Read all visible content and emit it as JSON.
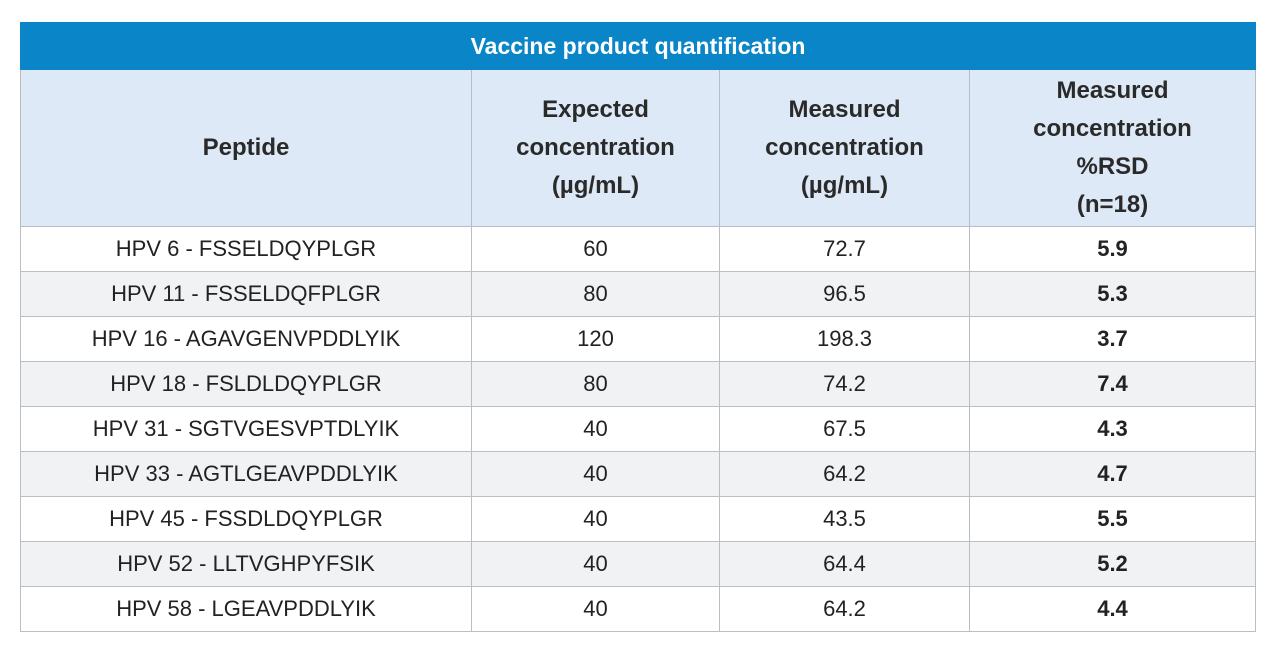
{
  "table": {
    "title": "Vaccine product quantification",
    "headers": {
      "peptide": [
        "Peptide"
      ],
      "expected": [
        "Expected",
        "concentration",
        "(µg/mL)"
      ],
      "measured": [
        "Measured",
        "concentration",
        "(µg/mL)"
      ],
      "rsd": [
        "Measured",
        "concentration",
        "%RSD",
        "(n=18)"
      ]
    },
    "rows": [
      {
        "peptide": "HPV 6 - FSSELDQYPLGR",
        "expected": "60",
        "measured": "72.7",
        "rsd": "5.9"
      },
      {
        "peptide": "HPV 11 - FSSELDQFPLGR",
        "expected": "80",
        "measured": "96.5",
        "rsd": "5.3"
      },
      {
        "peptide": "HPV 16 - AGAVGENVPDDLYIK",
        "expected": "120",
        "measured": "198.3",
        "rsd": "3.7"
      },
      {
        "peptide": "HPV 18 - FSLDLDQYPLGR",
        "expected": "80",
        "measured": "74.2",
        "rsd": "7.4"
      },
      {
        "peptide": "HPV 31 - SGTVGESVPTDLYIK",
        "expected": "40",
        "measured": "67.5",
        "rsd": "4.3"
      },
      {
        "peptide": "HPV 33 - AGTLGEAVPDDLYIK",
        "expected": "40",
        "measured": "64.2",
        "rsd": "4.7"
      },
      {
        "peptide": "HPV 45 - FSSDLDQYPLGR",
        "expected": "40",
        "measured": "43.5",
        "rsd": "5.5"
      },
      {
        "peptide": "HPV 52 - LLTVGHPYFSIK",
        "expected": "40",
        "measured": "64.4",
        "rsd": "5.2"
      },
      {
        "peptide": "HPV 58 - LGEAVPDDLYIK",
        "expected": "40",
        "measured": "64.2",
        "rsd": "4.4"
      }
    ]
  }
}
